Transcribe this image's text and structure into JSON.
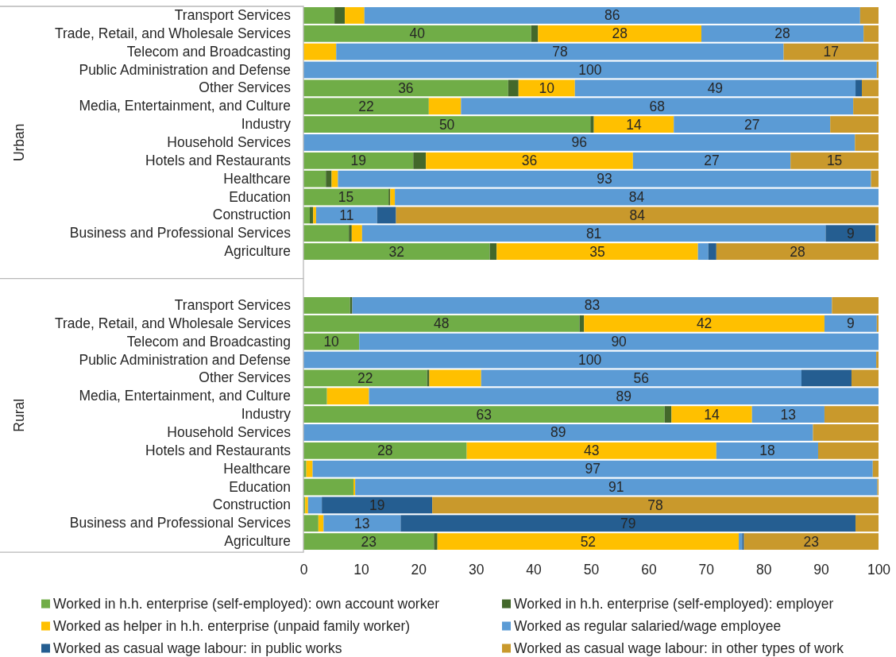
{
  "chart_data": [
    {
      "type": "bar",
      "orientation": "horizontal",
      "stacked": true,
      "ylabel": "Urban",
      "tick_labels": "y",
      "xlim": [
        0,
        100
      ],
      "categories": [
        "Transport Services",
        "Trade, Retail, and Wholesale Services",
        "Telecom and Broadcasting",
        "Public Administration and Defense",
        "Other Services",
        "Media, Entertainment, and Culture",
        "Industry",
        "Household Services",
        "Hotels and Restaurants",
        "Healthcare",
        "Education",
        "Construction",
        "Business and Professional Services",
        "Agriculture"
      ],
      "series": [
        {
          "color": "#70ad47",
          "values": [
            5.4,
            39.6,
            null,
            null,
            35.6,
            21.8,
            49.9,
            null,
            19.1,
            3.9,
            14.8,
            1.1,
            7.9,
            32.4
          ],
          "value_labels": [
            null,
            "40",
            null,
            null,
            "36",
            "22",
            "50",
            null,
            "19",
            null,
            "15",
            null,
            null,
            "32"
          ]
        },
        {
          "color": "#43682b",
          "values": [
            1.8,
            1.2,
            null,
            null,
            1.8,
            null,
            0.6,
            null,
            2.2,
            1.0,
            0.3,
            0.6,
            0.5,
            1.2
          ]
        },
        {
          "color": "#ffc000",
          "values": [
            3.4,
            28.4,
            5.7,
            null,
            9.8,
            5.6,
            13.9,
            null,
            36.0,
            1.1,
            0.8,
            0.5,
            1.8,
            35.0
          ],
          "value_labels": [
            null,
            "28",
            null,
            null,
            "10",
            null,
            "14",
            null,
            "36",
            null,
            null,
            null,
            null,
            "35"
          ]
        },
        {
          "color": "#5b9bd5",
          "values": [
            86.2,
            28.2,
            77.8,
            99.7,
            48.8,
            68.2,
            27.2,
            95.9,
            27.4,
            92.7,
            84.1,
            10.6,
            80.6,
            1.8
          ],
          "value_labels": [
            "86",
            "28",
            "78",
            "100",
            "49",
            "68",
            "27",
            "96",
            "27",
            "93",
            "84",
            "11",
            "81",
            null
          ]
        },
        {
          "color": "#255e91",
          "values": [
            null,
            null,
            null,
            null,
            1.1,
            null,
            null,
            null,
            null,
            null,
            null,
            3.3,
            8.7,
            1.4
          ],
          "value_labels": [
            null,
            null,
            null,
            null,
            null,
            null,
            null,
            null,
            null,
            null,
            null,
            null,
            "9",
            null
          ]
        },
        {
          "color": "#c9992c",
          "values": [
            3.2,
            2.6,
            16.5,
            0.3,
            2.9,
            4.4,
            8.4,
            4.1,
            15.3,
            1.3,
            null,
            83.9,
            0.5,
            28.2
          ],
          "value_labels": [
            null,
            null,
            "17",
            null,
            null,
            null,
            null,
            null,
            "15",
            null,
            null,
            "84",
            null,
            "28"
          ]
        }
      ]
    },
    {
      "type": "bar",
      "orientation": "horizontal",
      "stacked": true,
      "ylabel": "Rural",
      "xlim": [
        0,
        100
      ],
      "xticks": [
        0,
        10,
        20,
        30,
        40,
        50,
        60,
        70,
        80,
        90,
        100
      ],
      "legend": "bottom",
      "categories": [
        "Transport Services",
        "Trade, Retail, and Wholesale Services",
        "Telecom and Broadcasting",
        "Public Administration and Defense",
        "Other Services",
        "Media, Entertainment, and Culture",
        "Industry",
        "Household Services",
        "Hotels and Restaurants",
        "Healthcare",
        "Education",
        "Construction",
        "Business and Professional Services",
        "Agriculture"
      ],
      "series": [
        {
          "name": "Worked in h.h. enterprise (self-employed): own account worker",
          "color": "#70ad47",
          "values": [
            8.1,
            48.0,
            9.7,
            null,
            21.5,
            4.1,
            62.8,
            null,
            28.4,
            0.5,
            8.7,
            0.3,
            2.6,
            22.7
          ],
          "value_labels": [
            null,
            "48",
            "10",
            null,
            "22",
            null,
            "63",
            null,
            "28",
            null,
            null,
            null,
            null,
            "23"
          ]
        },
        {
          "name": "Worked in h.h. enterprise (self-employed): employer",
          "color": "#43682b",
          "values": [
            0.4,
            0.8,
            null,
            null,
            0.4,
            null,
            1.2,
            null,
            null,
            null,
            null,
            null,
            null,
            0.6
          ]
        },
        {
          "name": "Worked as helper in h.h. enterprise (unpaid family worker)",
          "color": "#ffc000",
          "values": [
            null,
            41.8,
            null,
            null,
            9.0,
            7.3,
            14.0,
            null,
            43.4,
            1.1,
            0.3,
            0.5,
            0.9,
            52.4
          ],
          "value_labels": [
            null,
            "42",
            null,
            null,
            null,
            null,
            "14",
            null,
            "43",
            null,
            null,
            null,
            null,
            "52"
          ]
        },
        {
          "name": "Worked as regular salaried/wage employee",
          "color": "#5b9bd5",
          "values": [
            83.4,
            9.1,
            90.3,
            99.6,
            55.7,
            88.6,
            12.6,
            88.6,
            17.7,
            97.4,
            90.8,
            2.4,
            13.4,
            0.6
          ],
          "value_labels": [
            "83",
            "9",
            "90",
            "100",
            "56",
            "89",
            "13",
            "89",
            "18",
            "97",
            "91",
            null,
            "13",
            null
          ]
        },
        {
          "name": "Worked as casual wage labour: in public works",
          "color": "#255e91",
          "values": [
            null,
            null,
            null,
            null,
            8.7,
            null,
            null,
            null,
            null,
            null,
            null,
            19.2,
            79.1,
            0.3
          ],
          "value_labels": [
            null,
            null,
            null,
            null,
            null,
            null,
            null,
            null,
            null,
            null,
            null,
            "19",
            "79",
            null
          ]
        },
        {
          "name": "Worked as casual wage labour: in other types of work",
          "color": "#c9992c",
          "values": [
            8.1,
            0.3,
            null,
            0.4,
            4.7,
            null,
            9.4,
            11.4,
            10.5,
            1.0,
            0.2,
            77.6,
            4.0,
            23.4
          ],
          "value_labels": [
            null,
            null,
            null,
            null,
            null,
            null,
            null,
            null,
            null,
            null,
            null,
            "78",
            null,
            "23"
          ]
        }
      ]
    }
  ]
}
